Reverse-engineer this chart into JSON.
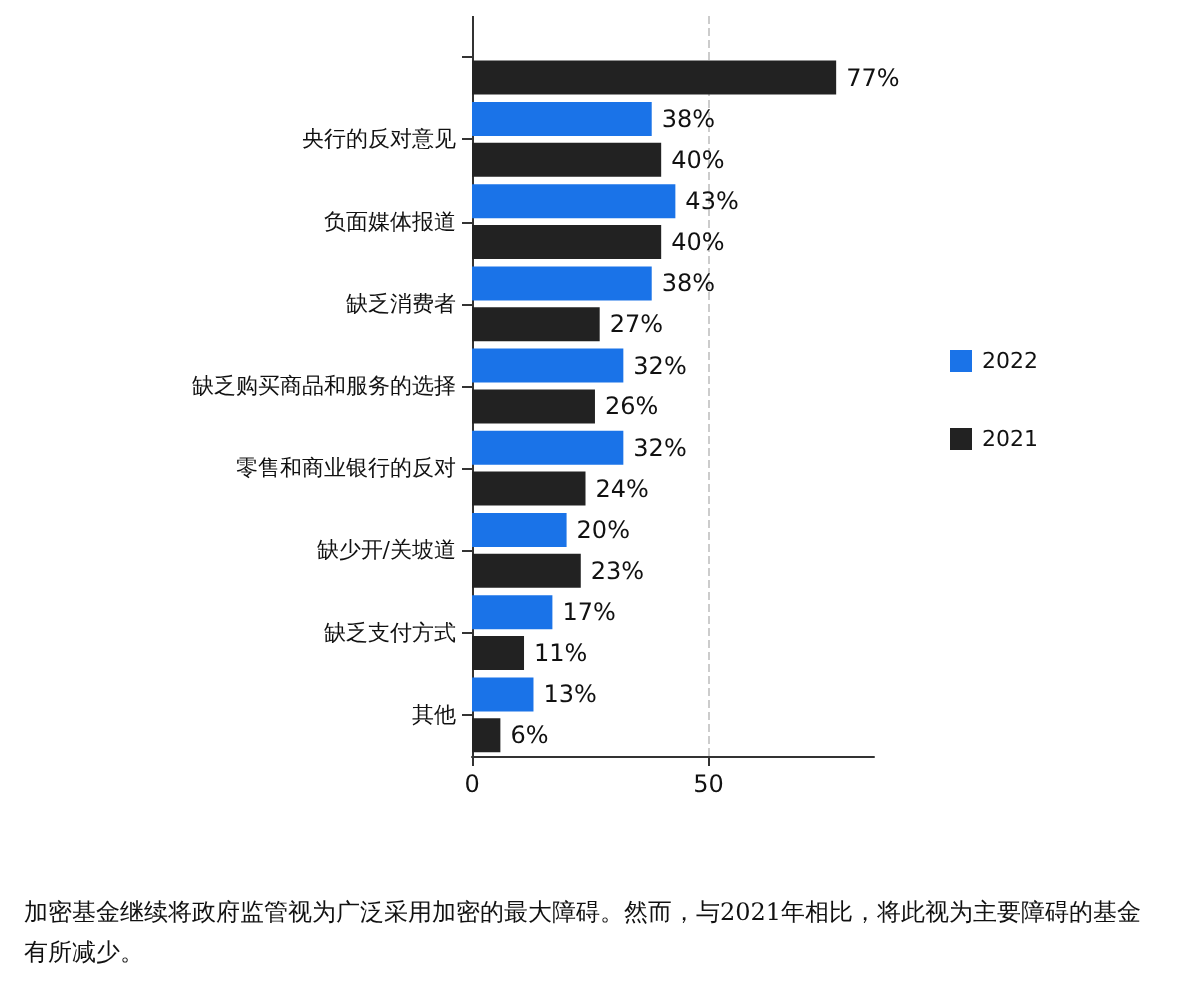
{
  "chart_data": {
    "type": "bar",
    "orientation": "horizontal",
    "categories": [
      null,
      "央行的反对意见",
      "负面媒体报道",
      "缺乏消费者",
      "缺乏购买商品和服务的选择",
      "零售和商业银行的反对",
      "缺少开/关坡道",
      "缺乏支付方式",
      "其他"
    ],
    "series": [
      {
        "name": "2022",
        "color": "#1a73e8",
        "values": [
          null,
          38,
          43,
          38,
          32,
          32,
          20,
          17,
          13
        ],
        "value_labels": [
          null,
          "38%",
          "43%",
          "38%",
          "32%",
          "32%",
          "20%",
          "17%",
          "13%"
        ]
      },
      {
        "name": "2021",
        "color": "#222222",
        "values": [
          77,
          40,
          40,
          27,
          26,
          24,
          23,
          11,
          6
        ],
        "value_labels": [
          "77%",
          "40%",
          "40%",
          "27%",
          "26%",
          "24%",
          "23%",
          "11%",
          "6%"
        ]
      }
    ],
    "xlim": [
      0,
      85
    ],
    "xticks": [
      0,
      50
    ],
    "grid": "x",
    "legend": "right",
    "annotations": [
      "加密基金继续将政府监管视为广泛采用加密的最大障碍。然而，与2021年相比，将此视为主要障碍的基金有所减少。"
    ]
  }
}
